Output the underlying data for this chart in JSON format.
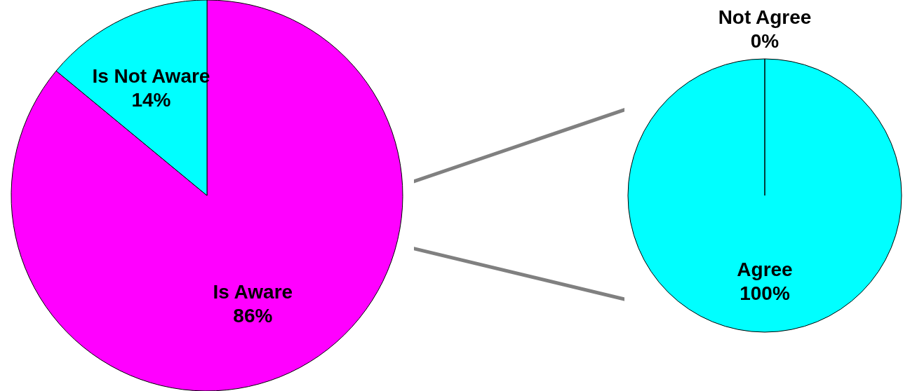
{
  "chart_data": [
    {
      "type": "pie",
      "categories": [
        "Is Aware",
        "Is Not Aware"
      ],
      "values": [
        86,
        14
      ],
      "colors": [
        "#ff00ff",
        "#00ffff"
      ],
      "value_labels": [
        "86%",
        "14%"
      ]
    },
    {
      "type": "pie",
      "categories": [
        "Agree",
        "Not Agree"
      ],
      "values": [
        100,
        0
      ],
      "colors": [
        "#00ffff",
        "#00ffff"
      ],
      "value_labels": [
        "100%",
        "0%"
      ]
    }
  ]
}
